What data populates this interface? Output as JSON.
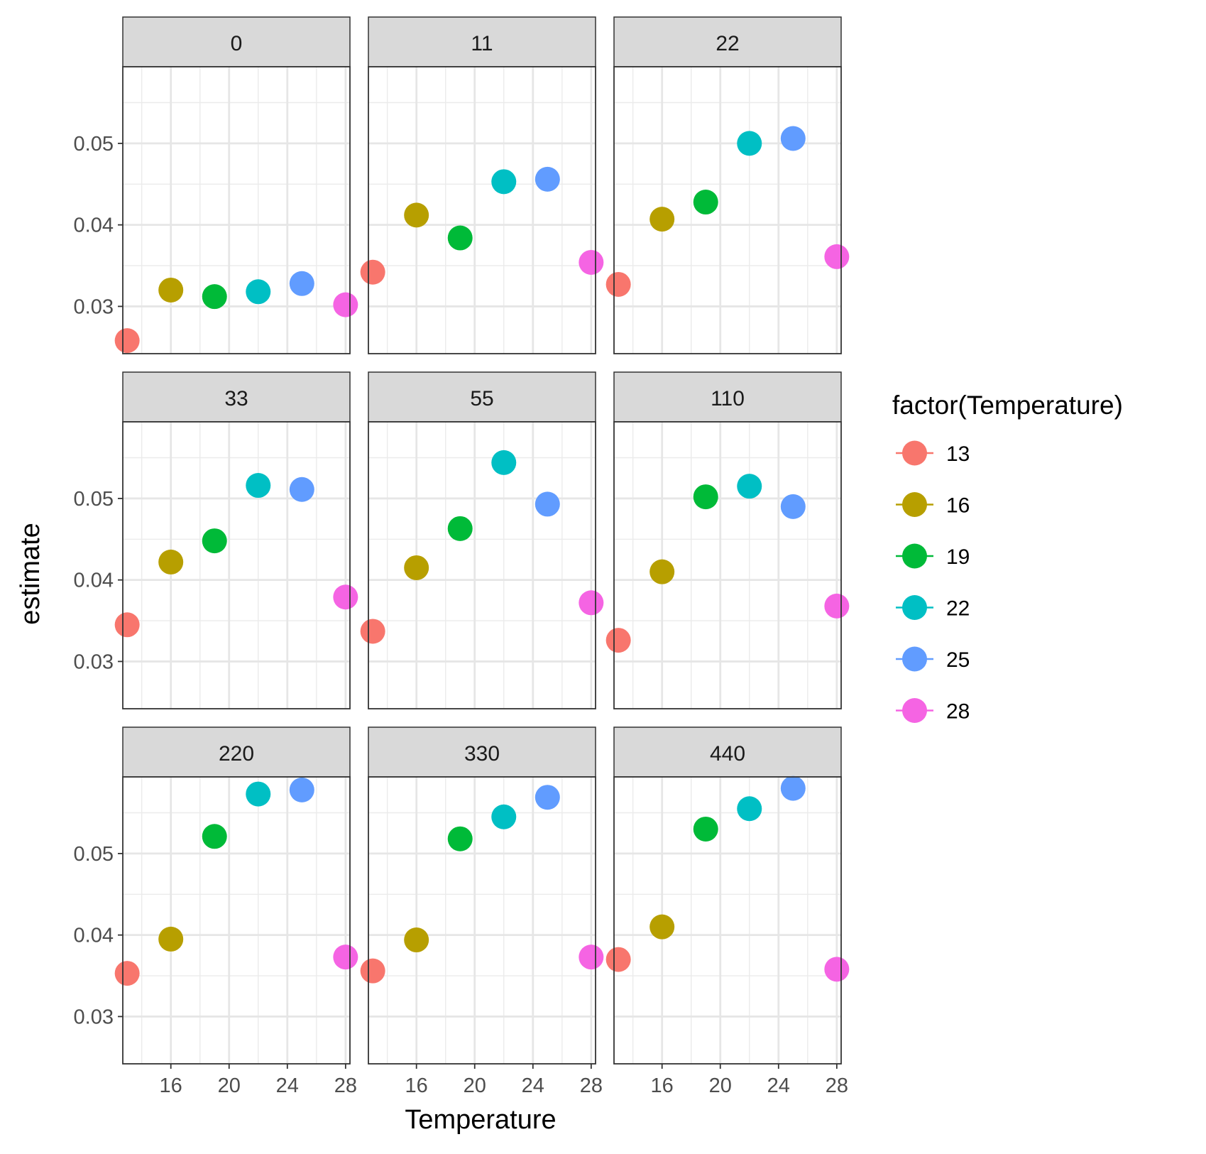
{
  "chart_data": {
    "type": "scatter",
    "facet_by": "panel",
    "x_field": "Temperature",
    "y_field": "estimate",
    "xlabel": "Temperature",
    "ylabel": "estimate",
    "xlim": [
      12.7,
      28.3
    ],
    "ylim": [
      0.0242,
      0.0594
    ],
    "x_ticks": [
      16,
      20,
      24,
      28
    ],
    "x_tick_labels": [
      "16",
      "20",
      "24",
      "28"
    ],
    "y_ticks": [
      0.03,
      0.04,
      0.05
    ],
    "y_tick_labels": [
      "0.03",
      "0.04",
      "0.05"
    ],
    "grid": true,
    "legend": {
      "title": "factor(Temperature)",
      "position": "right",
      "entries": [
        {
          "label": "13",
          "color": "#F8766D"
        },
        {
          "label": "16",
          "color": "#B79F00"
        },
        {
          "label": "19",
          "color": "#00BA38"
        },
        {
          "label": "22",
          "color": "#00BFC4"
        },
        {
          "label": "25",
          "color": "#619CFF"
        },
        {
          "label": "28",
          "color": "#F564E3"
        }
      ]
    },
    "x_values": [
      13,
      16,
      19,
      22,
      25,
      28
    ],
    "panels": [
      {
        "label": "0",
        "values": [
          0.0258,
          0.032,
          0.0312,
          0.0318,
          0.0328,
          0.0302
        ]
      },
      {
        "label": "11",
        "values": [
          0.0342,
          0.0412,
          0.0384,
          0.0453,
          0.0456,
          0.0354
        ]
      },
      {
        "label": "22",
        "values": [
          0.0327,
          0.0407,
          0.0428,
          0.05,
          0.0506,
          0.0361
        ]
      },
      {
        "label": "33",
        "values": [
          0.0345,
          0.0422,
          0.0448,
          0.0516,
          0.0511,
          0.0379
        ]
      },
      {
        "label": "55",
        "values": [
          0.0337,
          0.0415,
          0.0463,
          0.0544,
          0.0493,
          0.0372
        ]
      },
      {
        "label": "110",
        "values": [
          0.0326,
          0.041,
          0.0502,
          0.0515,
          0.049,
          0.0368
        ]
      },
      {
        "label": "220",
        "values": [
          0.0353,
          0.0395,
          0.0521,
          0.0573,
          0.0578,
          0.0373
        ]
      },
      {
        "label": "330",
        "values": [
          0.0356,
          0.0394,
          0.0518,
          0.0545,
          0.0569,
          0.0373
        ]
      },
      {
        "label": "440",
        "values": [
          0.037,
          0.041,
          0.053,
          0.0555,
          0.058,
          0.0358
        ]
      }
    ]
  }
}
